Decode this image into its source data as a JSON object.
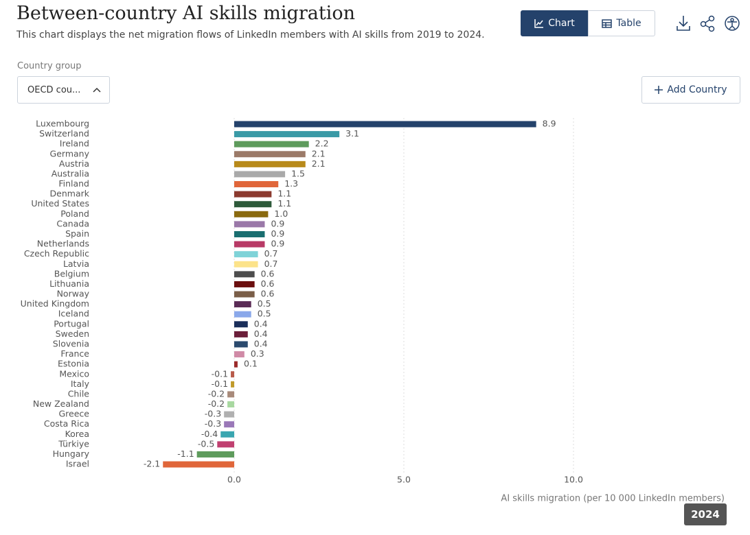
{
  "header": {
    "title": "Between-country AI skills migration",
    "subtitle": "This chart displays the net migration flows of LinkedIn members with AI skills from 2019 to 2024."
  },
  "controls": {
    "chart": "Chart",
    "table": "Table",
    "country_group_label": "Country group",
    "country_group_value": "OECD cou...",
    "add_country": "Add Country",
    "year": "2024"
  },
  "chart_data": {
    "type": "bar",
    "orientation": "horizontal",
    "x_label": "AI skills migration (per 10 000 LinkedIn members)",
    "categories": [
      "Luxembourg",
      "Switzerland",
      "Ireland",
      "Germany",
      "Austria",
      "Australia",
      "Finland",
      "Denmark",
      "United States",
      "Poland",
      "Canada",
      "Spain",
      "Netherlands",
      "Czech Republic",
      "Latvia",
      "Belgium",
      "Lithuania",
      "Norway",
      "United Kingdom",
      "Iceland",
      "Portugal",
      "Sweden",
      "Slovenia",
      "France",
      "Estonia",
      "Mexico",
      "Italy",
      "Chile",
      "New Zealand",
      "Greece",
      "Costa Rica",
      "Korea",
      "Türkiye",
      "Hungary",
      "Israel"
    ],
    "values": [
      8.9,
      3.1,
      2.2,
      2.1,
      2.1,
      1.5,
      1.3,
      1.1,
      1.1,
      1.0,
      0.9,
      0.9,
      0.9,
      0.7,
      0.7,
      0.6,
      0.6,
      0.6,
      0.5,
      0.5,
      0.4,
      0.4,
      0.4,
      0.3,
      0.1,
      -0.1,
      -0.1,
      -0.2,
      -0.2,
      -0.3,
      -0.3,
      -0.4,
      -0.5,
      -1.1,
      -2.1
    ],
    "value_labels": [
      "8.9",
      "3.1",
      "2.2",
      "2.1",
      "2.1",
      "1.5",
      "1.3",
      "1.1",
      "1.1",
      "1.0",
      "0.9",
      "0.9",
      "0.9",
      "0.7",
      "0.7",
      "0.6",
      "0.6",
      "0.6",
      "0.5",
      "0.5",
      "0.4",
      "0.4",
      "0.4",
      "0.3",
      "0.1",
      "-0.1",
      "-0.1",
      "-0.2",
      "-0.2",
      "-0.3",
      "-0.3",
      "-0.4",
      "-0.5",
      "-1.1",
      "-2.1"
    ],
    "colors": [
      "#24426b",
      "#3a9aa6",
      "#5e9b5c",
      "#9b7a68",
      "#b88a1a",
      "#a9a9a9",
      "#e0663a",
      "#8b3a2f",
      "#2e5a3a",
      "#8a6a10",
      "#9a78a8",
      "#1a6e70",
      "#b83a66",
      "#7fd3d8",
      "#fce38a",
      "#4d4d4d",
      "#6b0f0f",
      "#7a5e48",
      "#5a2b55",
      "#8aa8ea",
      "#1a2e5a",
      "#6b1f3a",
      "#2b4a6e",
      "#d08aa6",
      "#9b2a2a",
      "#b85a4a",
      "#c09a2a",
      "#a88a7a",
      "#a8d8a0",
      "#b0b0b0",
      "#9a78b8",
      "#3aa6b0",
      "#c04070",
      "#5e9b5c",
      "#e0663a"
    ],
    "xlim": [
      -4,
      15
    ],
    "xticks": [
      {
        "value": 0,
        "label": "0.0"
      },
      {
        "value": 5,
        "label": "5.0"
      },
      {
        "value": 10,
        "label": "10.0"
      }
    ],
    "grid": true
  }
}
